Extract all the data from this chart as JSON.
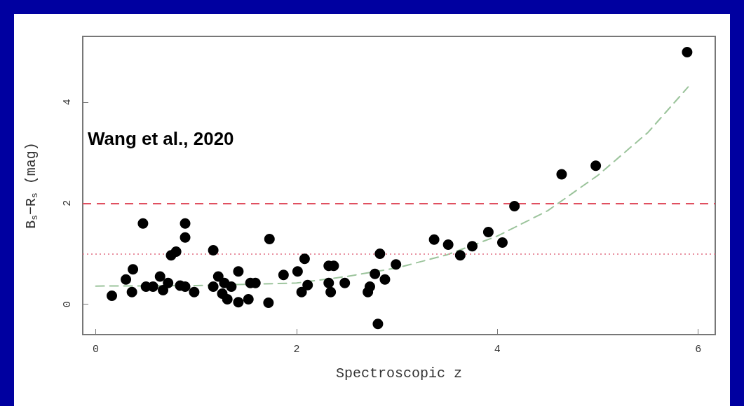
{
  "chart_data": {
    "type": "scatter",
    "xlabel": "Spectroscopic z",
    "ylabel": "B$_{s}$−R$_{s}$ (mag)",
    "annotations": [
      "Wang et al., 2020"
    ],
    "xlim": [
      -0.13,
      6.17
    ],
    "ylim": [
      -0.6,
      5.3
    ],
    "xticks": [
      0,
      2,
      4,
      6
    ],
    "yticks": [
      0,
      2,
      4
    ],
    "grid": false,
    "marker": "circle",
    "series": [
      {
        "color": "#000000",
        "x": [
          0.16,
          0.3,
          0.37,
          0.36,
          0.47,
          0.5,
          0.57,
          0.64,
          0.67,
          0.72,
          0.75,
          0.8,
          0.84,
          0.89,
          0.89,
          0.89,
          0.98,
          1.17,
          1.17,
          1.22,
          1.26,
          1.28,
          1.31,
          1.35,
          1.42,
          1.42,
          1.52,
          1.54,
          1.59,
          1.73,
          1.72,
          1.87,
          2.01,
          2.05,
          2.08,
          2.11,
          2.32,
          2.37,
          2.32,
          2.34,
          2.48,
          2.71,
          2.73,
          2.78,
          2.81,
          2.83,
          2.88,
          2.99,
          3.37,
          3.51,
          3.63,
          3.75,
          3.91,
          4.05,
          4.17,
          4.64,
          4.98,
          5.89
        ],
        "values": [
          0.17,
          0.49,
          0.69,
          0.24,
          1.6,
          0.35,
          0.35,
          0.55,
          0.28,
          0.42,
          0.97,
          1.04,
          0.37,
          1.6,
          1.32,
          0.35,
          0.24,
          1.07,
          0.35,
          0.55,
          0.21,
          0.42,
          0.1,
          0.35,
          0.65,
          0.04,
          0.1,
          0.42,
          0.42,
          1.29,
          0.03,
          0.58,
          0.65,
          0.24,
          0.9,
          0.38,
          0.76,
          0.76,
          0.42,
          0.24,
          0.42,
          0.24,
          0.35,
          0.6,
          -0.39,
          1.0,
          0.49,
          0.79,
          1.28,
          1.18,
          0.97,
          1.15,
          1.43,
          1.22,
          1.94,
          2.57,
          2.74,
          4.99
        ]
      },
      {
        "type": "line",
        "color": "#9cc49c",
        "line_style": "dashed",
        "marker": "none",
        "x": [
          0,
          1,
          2,
          2.5,
          3,
          3.5,
          4,
          4.5,
          5,
          5.5,
          5.9
        ],
        "values": [
          0.36,
          0.37,
          0.42,
          0.55,
          0.72,
          0.98,
          1.35,
          1.85,
          2.55,
          3.4,
          4.3
        ]
      }
    ],
    "ref_lines": [
      {
        "axis": "y",
        "value": 2,
        "color": "#e05060",
        "line_style": "dashed"
      },
      {
        "axis": "y",
        "value": 1,
        "color": "#e890a0",
        "line_style": "dotted"
      }
    ]
  }
}
